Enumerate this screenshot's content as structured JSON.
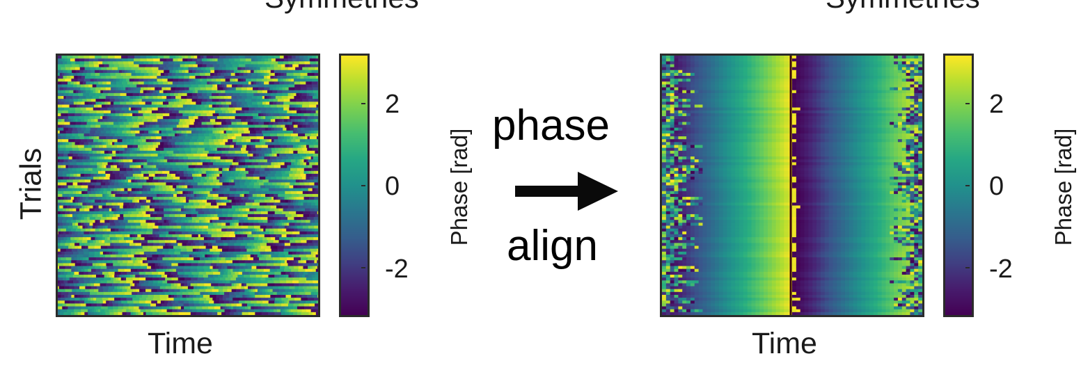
{
  "chart_data": [
    {
      "type": "heatmap",
      "title": "Symmetries",
      "xlabel": "Time",
      "ylabel": "Trials",
      "description_values": "random phases per trial",
      "colorbar": {
        "label": "Phase [rad]",
        "ticks": [
          2,
          0,
          -2
        ],
        "tick_labels": [
          "2",
          "0",
          "-2"
        ],
        "range": [
          -3.14,
          3.14
        ],
        "colormap": "viridis"
      }
    },
    {
      "type": "heatmap",
      "title": "Symmetries",
      "xlabel": "Time",
      "ylabel": "",
      "alignment_fraction": 0.5,
      "colorbar": {
        "label": "Phase [rad]",
        "ticks": [
          2,
          0,
          -2
        ],
        "tick_labels": [
          "2",
          "0",
          "-2"
        ],
        "range": [
          -3.14,
          3.14
        ],
        "colormap": "viridis"
      }
    }
  ],
  "operation": {
    "line1": "phase",
    "line2": "align"
  },
  "colors": {
    "viridis_low": "#440154",
    "viridis_mid": "#21918c",
    "viridis_high": "#fde725",
    "frame": "#2b2b2b",
    "arrow": "#0a0a0a"
  }
}
